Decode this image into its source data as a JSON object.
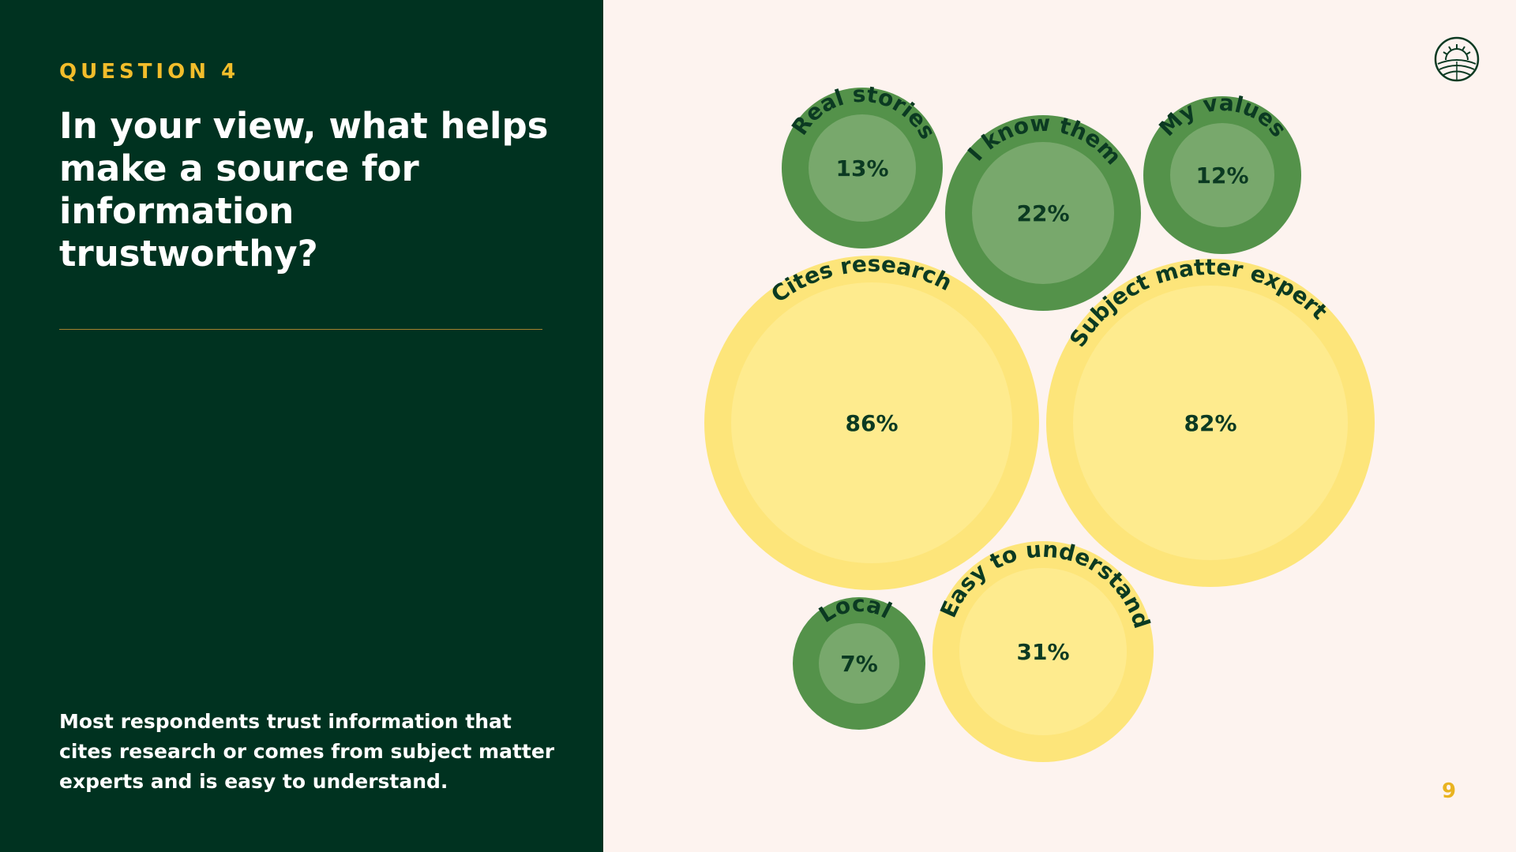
{
  "slide": {
    "eyebrow": "QUESTION 4",
    "question": "In your view, what helps make a source for information trustworthy?",
    "summary": "Most respondents trust information that cites research or comes from subject matter experts and is easy to understand.",
    "page_number": "9"
  },
  "colors": {
    "left_panel": "#003220",
    "background": "#fdf3ef",
    "accent_gold": "#f2bd2b",
    "green_outer": "#54924a",
    "green_inner": "#78a86c",
    "yellow_outer": "#fde57a",
    "yellow_inner": "#feeb8e",
    "label_text": "#0b3a22"
  },
  "logo": {
    "icon": "sun-over-hills-icon"
  },
  "chart_data": {
    "type": "bubble",
    "categories": [
      "Real stories",
      "I know them",
      "My values",
      "Cites research",
      "Subject matter expert",
      "Local",
      "Easy to understand"
    ],
    "values": [
      13,
      22,
      12,
      86,
      82,
      7,
      31
    ],
    "value_labels": [
      "13%",
      "22%",
      "12%",
      "86%",
      "82%",
      "7%",
      "31%"
    ],
    "highlight": [
      "Cites research",
      "Subject matter expert",
      "Easy to understand"
    ]
  }
}
